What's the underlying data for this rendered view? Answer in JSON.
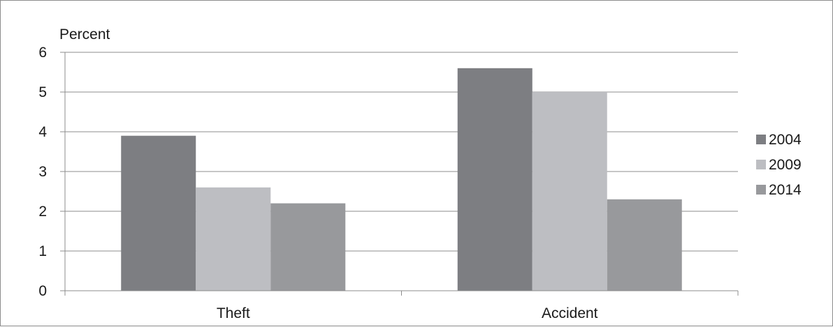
{
  "chart_data": {
    "type": "bar",
    "title": "",
    "xlabel": "",
    "ylabel": "Percent",
    "ylim": [
      0,
      6
    ],
    "yticks": [
      0,
      1,
      2,
      3,
      4,
      5,
      6
    ],
    "categories": [
      "Theft",
      "Accident"
    ],
    "series": [
      {
        "name": "2004",
        "values": [
          3.9,
          5.6
        ],
        "color": "#7d7e82"
      },
      {
        "name": "2009",
        "values": [
          2.6,
          5.0
        ],
        "color": "#bdbec2"
      },
      {
        "name": "2014",
        "values": [
          2.2,
          2.3
        ],
        "color": "#98999c"
      }
    ],
    "grid": true,
    "legend_position": "right"
  }
}
